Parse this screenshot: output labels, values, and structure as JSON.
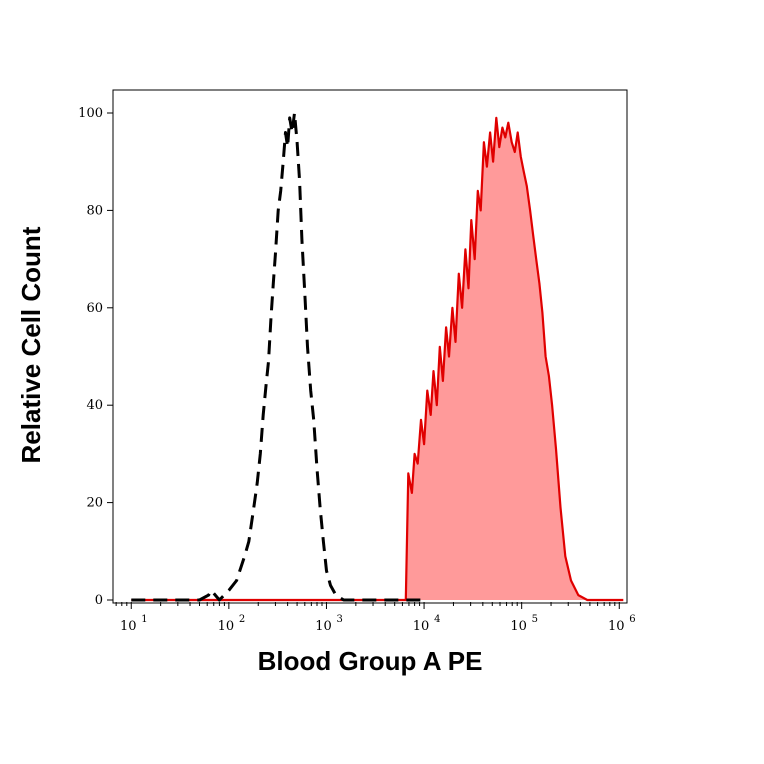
{
  "chart_data": {
    "type": "area",
    "xlabel": "Blood Group A PE",
    "ylabel": "Relative Cell Count",
    "x_scale": "log",
    "xlim": [
      6.5,
      1200000
    ],
    "ylim": [
      0,
      100
    ],
    "x_ticks": [
      {
        "base": "10",
        "exp": "1",
        "value": 10
      },
      {
        "base": "10",
        "exp": "2",
        "value": 100
      },
      {
        "base": "10",
        "exp": "3",
        "value": 1000
      },
      {
        "base": "10",
        "exp": "4",
        "value": 10000
      },
      {
        "base": "10",
        "exp": "5",
        "value": 100000
      },
      {
        "base": "10",
        "exp": "6",
        "value": 1000000
      }
    ],
    "y_ticks": [
      {
        "label": "0",
        "value": 0
      },
      {
        "label": "20",
        "value": 20
      },
      {
        "label": "40",
        "value": 40
      },
      {
        "label": "60",
        "value": 60
      },
      {
        "label": "80",
        "value": 80
      },
      {
        "label": "100",
        "value": 100
      }
    ],
    "grid": false,
    "series": [
      {
        "style": "dashed-line",
        "color": "#000000",
        "x": [
          10,
          50,
          62,
          66,
          80,
          100,
          120,
          145,
          160,
          180,
          195,
          210,
          225,
          240,
          255,
          270,
          285,
          300,
          320,
          340,
          360,
          380,
          400,
          420,
          445,
          470,
          500,
          530,
          560,
          600,
          640,
          690,
          740,
          800,
          860,
          930,
          1000,
          1100,
          1250,
          1500,
          2000,
          10000
        ],
        "y": [
          0,
          0,
          1,
          2,
          0,
          2,
          4,
          9,
          12,
          19,
          24,
          30,
          38,
          44,
          49,
          58,
          65,
          71,
          80,
          84,
          90,
          96,
          93,
          99,
          96,
          100,
          94,
          86,
          74,
          63,
          52,
          43,
          37,
          27,
          19,
          12,
          6,
          3,
          1,
          0,
          0,
          0
        ]
      },
      {
        "style": "filled-area",
        "color": "#e00000",
        "fill": "#ff9a9a",
        "x": [
          10,
          6500,
          6900,
          7500,
          8000,
          8600,
          9300,
          10000,
          10800,
          11700,
          12500,
          13500,
          14500,
          15600,
          16800,
          18000,
          19500,
          21000,
          22700,
          24500,
          26500,
          28500,
          30500,
          33000,
          35500,
          38000,
          41000,
          44000,
          47500,
          51000,
          55000,
          59000,
          63500,
          68000,
          73000,
          79000,
          85000,
          91000,
          98000,
          105000,
          113000,
          122000,
          131000,
          141000,
          152000,
          163000,
          176000,
          190000,
          205000,
          225000,
          250000,
          280000,
          320000,
          380000,
          470000,
          600000,
          800000,
          1100000
        ],
        "y": [
          0,
          0,
          26,
          22,
          30,
          28,
          37,
          32,
          43,
          38,
          47,
          40,
          52,
          45,
          56,
          50,
          60,
          53,
          67,
          60,
          72,
          64,
          78,
          70,
          84,
          80,
          94,
          89,
          96,
          90,
          99,
          93,
          97,
          95,
          98,
          94,
          92,
          96,
          91,
          88,
          85,
          80,
          75,
          70,
          65,
          59,
          50,
          46,
          40,
          31,
          19,
          9,
          4,
          1,
          0,
          0,
          0,
          0
        ]
      }
    ]
  }
}
